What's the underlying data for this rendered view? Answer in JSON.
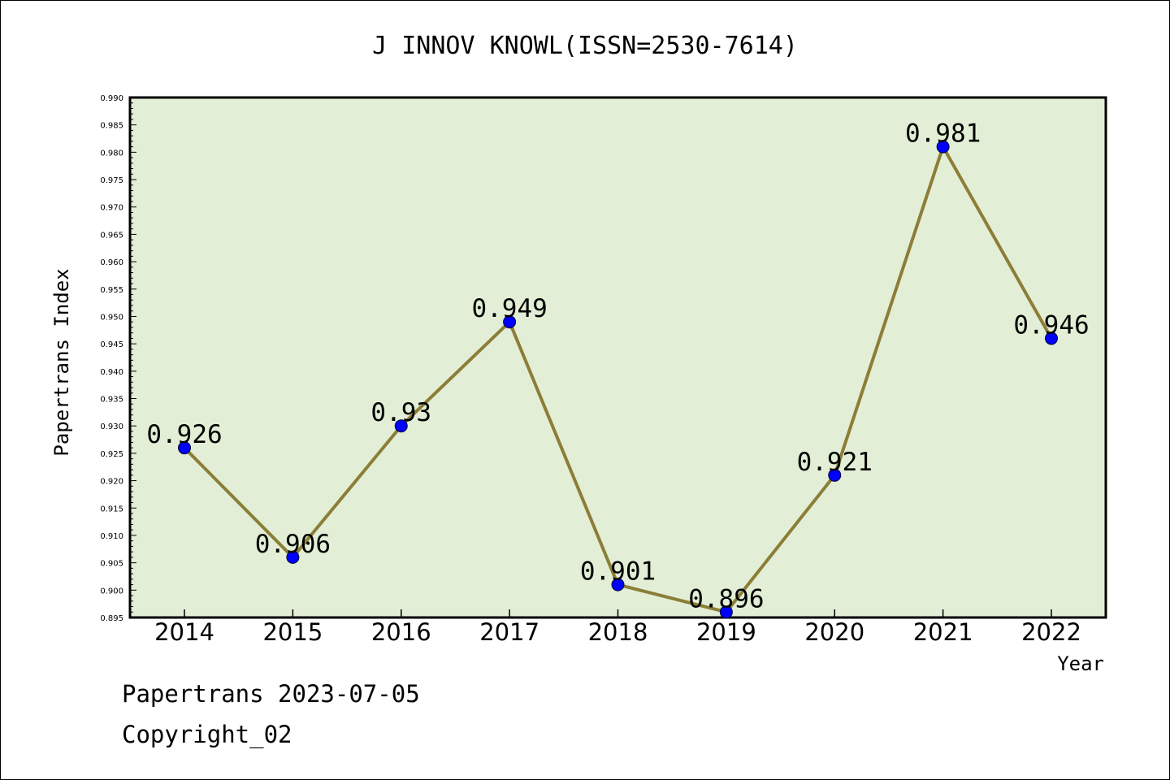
{
  "chart_data": {
    "type": "line",
    "title": "J INNOV KNOWL(ISSN=2530-7614)",
    "xlabel": "Year",
    "ylabel": "Papertrans Index",
    "categories": [
      "2014",
      "2015",
      "2016",
      "2017",
      "2018",
      "2019",
      "2020",
      "2021",
      "2022"
    ],
    "values": [
      0.926,
      0.906,
      0.93,
      0.949,
      0.901,
      0.896,
      0.921,
      0.981,
      0.946
    ],
    "data_labels": [
      "0.926",
      "0.906",
      "0.93",
      "0.949",
      "0.901",
      "0.896",
      "0.921",
      "0.981",
      "0.946"
    ],
    "ylim": [
      0.895,
      0.99
    ],
    "yticks": [
      "0.895",
      "0.900",
      "0.905",
      "0.910",
      "0.915",
      "0.920",
      "0.925",
      "0.930",
      "0.935",
      "0.940",
      "0.945",
      "0.950",
      "0.955",
      "0.960",
      "0.965",
      "0.970",
      "0.975",
      "0.980",
      "0.985",
      "0.990"
    ],
    "grid": false,
    "colors": {
      "plot_background": "#e2efd6",
      "line": "#8c7d37",
      "marker": "#0000ff"
    }
  },
  "footer": {
    "line1": "Papertrans 2023-07-05",
    "line2": "Copyright_02"
  }
}
